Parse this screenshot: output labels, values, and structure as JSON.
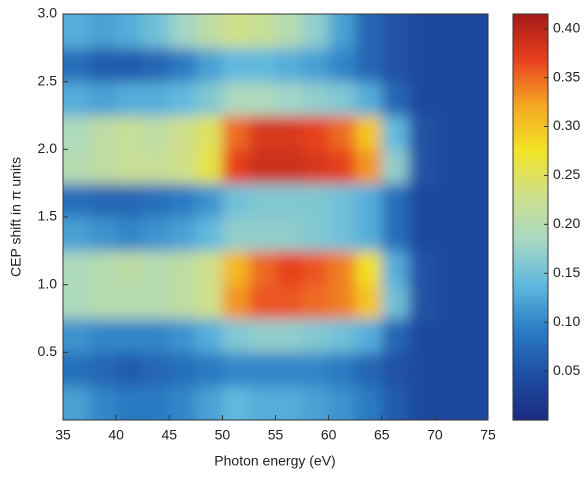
{
  "chart_data": {
    "type": "heatmap",
    "xlabel": "Photon energy (eV)",
    "ylabel": "CEP shift in π units",
    "x": [
      36.25,
      38.75,
      41.25,
      43.75,
      46.25,
      48.75,
      51.25,
      53.75,
      56.25,
      58.75,
      61.25,
      63.75,
      66.25,
      68.75,
      71.25,
      73.75
    ],
    "y": [
      0.125,
      0.375,
      0.625,
      0.875,
      1.125,
      1.375,
      1.625,
      1.875,
      2.125,
      2.375,
      2.625,
      2.875
    ],
    "values": [
      [
        0.12,
        0.1,
        0.09,
        0.09,
        0.1,
        0.12,
        0.14,
        0.13,
        0.13,
        0.12,
        0.11,
        0.09,
        0.06,
        0.04,
        0.04,
        0.04
      ],
      [
        0.08,
        0.07,
        0.06,
        0.07,
        0.08,
        0.09,
        0.1,
        0.1,
        0.1,
        0.1,
        0.09,
        0.07,
        0.05,
        0.04,
        0.04,
        0.04
      ],
      [
        0.11,
        0.1,
        0.1,
        0.1,
        0.11,
        0.13,
        0.16,
        0.17,
        0.17,
        0.16,
        0.15,
        0.13,
        0.07,
        0.04,
        0.04,
        0.04
      ],
      [
        0.19,
        0.2,
        0.2,
        0.2,
        0.21,
        0.23,
        0.33,
        0.36,
        0.36,
        0.35,
        0.34,
        0.3,
        0.15,
        0.05,
        0.04,
        0.04
      ],
      [
        0.19,
        0.2,
        0.21,
        0.2,
        0.21,
        0.23,
        0.31,
        0.35,
        0.37,
        0.36,
        0.34,
        0.28,
        0.13,
        0.05,
        0.04,
        0.04
      ],
      [
        0.12,
        0.11,
        0.1,
        0.11,
        0.12,
        0.14,
        0.17,
        0.17,
        0.17,
        0.16,
        0.15,
        0.13,
        0.08,
        0.04,
        0.04,
        0.04
      ],
      [
        0.08,
        0.07,
        0.07,
        0.08,
        0.09,
        0.11,
        0.15,
        0.16,
        0.16,
        0.16,
        0.15,
        0.13,
        0.08,
        0.04,
        0.04,
        0.04
      ],
      [
        0.2,
        0.21,
        0.22,
        0.22,
        0.23,
        0.26,
        0.37,
        0.39,
        0.39,
        0.38,
        0.37,
        0.33,
        0.17,
        0.05,
        0.04,
        0.04
      ],
      [
        0.19,
        0.21,
        0.22,
        0.21,
        0.23,
        0.25,
        0.35,
        0.38,
        0.38,
        0.37,
        0.35,
        0.3,
        0.14,
        0.05,
        0.04,
        0.04
      ],
      [
        0.13,
        0.12,
        0.13,
        0.13,
        0.14,
        0.16,
        0.19,
        0.19,
        0.18,
        0.17,
        0.16,
        0.13,
        0.07,
        0.04,
        0.04,
        0.04
      ],
      [
        0.08,
        0.06,
        0.06,
        0.07,
        0.09,
        0.12,
        0.14,
        0.14,
        0.13,
        0.12,
        0.1,
        0.07,
        0.05,
        0.04,
        0.04,
        0.04
      ],
      [
        0.13,
        0.12,
        0.13,
        0.15,
        0.18,
        0.21,
        0.23,
        0.22,
        0.2,
        0.17,
        0.12,
        0.07,
        0.05,
        0.04,
        0.04,
        0.04
      ]
    ],
    "xlim": [
      35,
      75
    ],
    "xticks": [
      35,
      40,
      45,
      50,
      55,
      60,
      65,
      70,
      75
    ],
    "ylim": [
      0,
      3
    ],
    "yticks": [
      0.5,
      {
        "value": 1,
        "label": "1.0"
      },
      1.5,
      {
        "value": 2,
        "label": "2.0"
      },
      2.5,
      {
        "value": 3,
        "label": "3.0"
      }
    ],
    "clim": [
      0,
      0.415
    ],
    "cticks": [
      0.05,
      {
        "value": 0.1,
        "label": "0.10"
      },
      0.15,
      {
        "value": 0.2,
        "label": "0.20"
      },
      0.25,
      {
        "value": 0.3,
        "label": "0.30"
      },
      0.35,
      {
        "value": 0.4,
        "label": "0.40"
      }
    ],
    "colormap": [
      "#1b2a80",
      "#1f4ea3",
      "#2a7cc4",
      "#5fb8df",
      "#a8d8c4",
      "#cfe08a",
      "#f2e324",
      "#f5a623",
      "#e8401f",
      "#a61c18"
    ]
  }
}
